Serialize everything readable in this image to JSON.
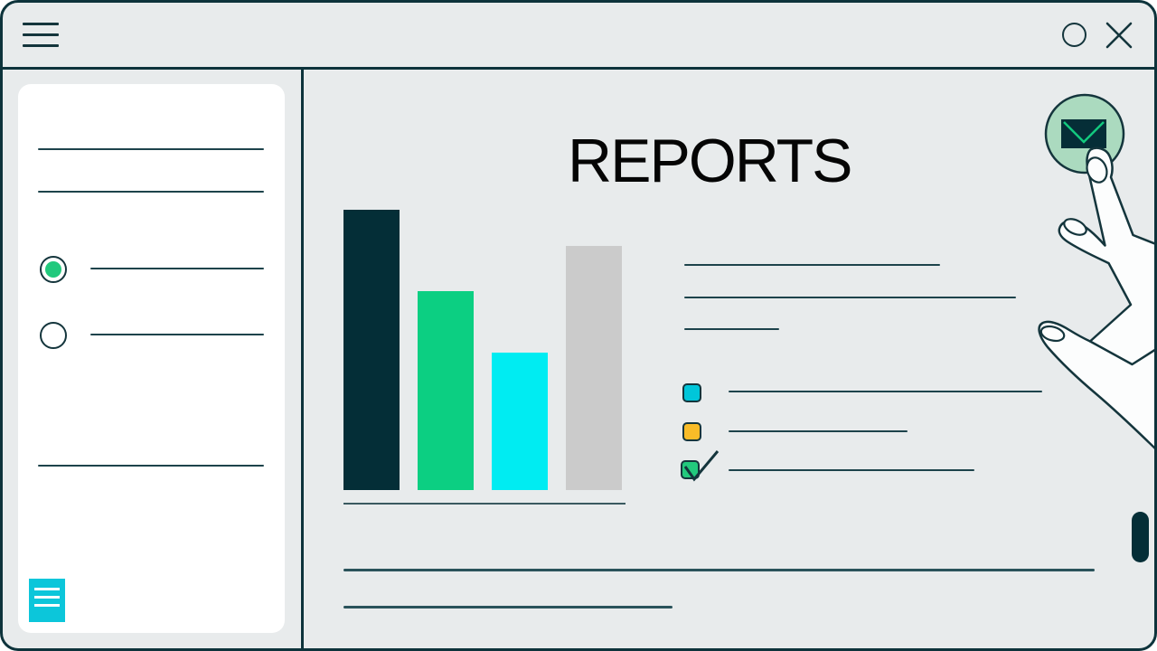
{
  "window": {
    "background_color": "#e8ebec",
    "outline_color": "#0d333b",
    "titlebar": {
      "menu_icon": "hamburger-icon",
      "minimize_icon": "circle-outline-icon",
      "close_icon": "x-icon"
    },
    "scrollbar_color": "#052e37"
  },
  "sidebar": {
    "card_color": "#ffffff",
    "top_placeholder_lines": 2,
    "options": [
      {
        "type": "radio",
        "selected": true,
        "dot_color": "#22c97d"
      },
      {
        "type": "radio",
        "selected": false,
        "dot_color": null
      }
    ],
    "bottom_placeholder_lines": 1,
    "footer_icon": "document-list-icon",
    "footer_icon_color": "#0cc6da"
  },
  "main": {
    "title": "REPORTS",
    "paragraph_placeholder_lines": 3,
    "checklist": [
      {
        "checked": false,
        "box_color": "#00c6da"
      },
      {
        "checked": false,
        "box_color": "#f9bc28"
      },
      {
        "checked": true,
        "box_color": "#22c97d"
      }
    ],
    "footer_placeholder_lines": 2,
    "email_button": {
      "icon": "envelope-icon",
      "circle_color": "#abdabf",
      "envelope_color": "#052e37",
      "flap_color": "#12c97e"
    },
    "cursor_illustration": "hand-pointing"
  },
  "chart_data": {
    "type": "bar",
    "categories": [
      "",
      "",
      "",
      ""
    ],
    "values": [
      100,
      71,
      49,
      87
    ],
    "bar_colors": [
      "#042e37",
      "#0ccf82",
      "#00ecf2",
      "#cbcbcb"
    ],
    "title": "",
    "xlabel": "",
    "ylabel": "",
    "ylim": [
      0,
      100
    ],
    "grid": false,
    "legend": false
  }
}
